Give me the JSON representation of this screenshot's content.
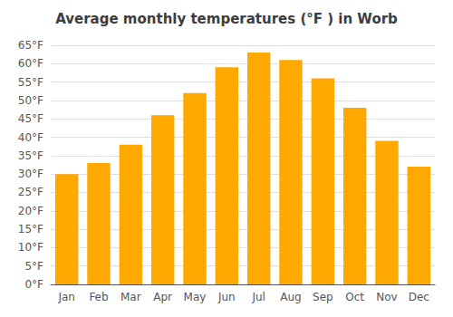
{
  "chart_data": {
    "type": "bar",
    "title": "Average monthly temperatures (°F ) in Worb",
    "categories": [
      "Jan",
      "Feb",
      "Mar",
      "Apr",
      "May",
      "Jun",
      "Jul",
      "Aug",
      "Sep",
      "Oct",
      "Nov",
      "Dec"
    ],
    "values": [
      30,
      33,
      38,
      46,
      52,
      59,
      63,
      61,
      56,
      48,
      39,
      32
    ],
    "color": "#FFA800",
    "ylim": [
      0,
      65
    ],
    "yticks": [
      {
        "value": 0,
        "label": "0°F"
      },
      {
        "value": 5,
        "label": "5°F"
      },
      {
        "value": 10,
        "label": "10°F"
      },
      {
        "value": 15,
        "label": "15°F"
      },
      {
        "value": 20,
        "label": "20°F"
      },
      {
        "value": 25,
        "label": "25°F"
      },
      {
        "value": 30,
        "label": "30°F"
      },
      {
        "value": 35,
        "label": "35°F"
      },
      {
        "value": 40,
        "label": "40°F"
      },
      {
        "value": 45,
        "label": "45°F"
      },
      {
        "value": 50,
        "label": "50°F"
      },
      {
        "value": 55,
        "label": "55°F"
      },
      {
        "value": 60,
        "label": "60°F"
      },
      {
        "value": 65,
        "label": "65°F"
      }
    ],
    "grid": true
  }
}
